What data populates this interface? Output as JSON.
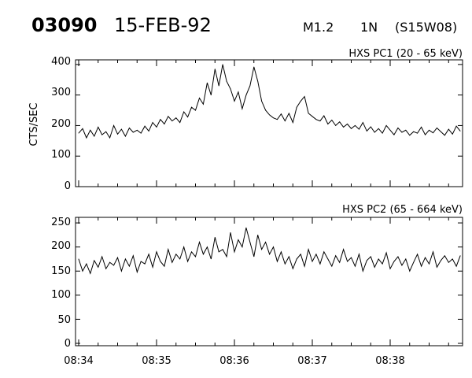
{
  "header": {
    "event_id": "03090",
    "date": "15-FEB-92",
    "goes_class": "M1.2",
    "optical_class": "1N",
    "location": "(S15W08)"
  },
  "y_axis_label": "CTS/SEC",
  "x_tick_labels": [
    "08:34",
    "08:35",
    "08:36",
    "08:37",
    "08:38"
  ],
  "chart_data": [
    {
      "type": "line",
      "title": "HXS PC1 (20 - 65 keV)",
      "ylabel": "CTS/SEC",
      "xlabel": "",
      "xlim": [
        "08:34:00",
        "08:38:55"
      ],
      "ylim": [
        0,
        410
      ],
      "yticks": [
        "0",
        "100",
        "200",
        "300",
        "400"
      ],
      "xticks": [
        "08:34",
        "08:35",
        "08:36",
        "08:37",
        "08:38"
      ],
      "x_unit": "minutes after 08:34",
      "series": [
        {
          "color": "#000000",
          "x": [
            0.0,
            0.05,
            0.1,
            0.15,
            0.2,
            0.25,
            0.3,
            0.35,
            0.4,
            0.45,
            0.5,
            0.55,
            0.6,
            0.65,
            0.7,
            0.75,
            0.8,
            0.85,
            0.9,
            0.95,
            1.0,
            1.05,
            1.1,
            1.15,
            1.2,
            1.25,
            1.3,
            1.35,
            1.4,
            1.45,
            1.5,
            1.55,
            1.6,
            1.65,
            1.7,
            1.75,
            1.8,
            1.85,
            1.9,
            1.95,
            2.0,
            2.05,
            2.1,
            2.15,
            2.2,
            2.25,
            2.3,
            2.35,
            2.4,
            2.45,
            2.5,
            2.55,
            2.6,
            2.65,
            2.7,
            2.75,
            2.8,
            2.85,
            2.9,
            2.95,
            3.0,
            3.05,
            3.1,
            3.15,
            3.2,
            3.25,
            3.3,
            3.35,
            3.4,
            3.45,
            3.5,
            3.55,
            3.6,
            3.65,
            3.7,
            3.75,
            3.8,
            3.85,
            3.9,
            3.95,
            4.0,
            4.05,
            4.1,
            4.15,
            4.2,
            4.25,
            4.3,
            4.35,
            4.4,
            4.45,
            4.5,
            4.55,
            4.6,
            4.65,
            4.7,
            4.75,
            4.8,
            4.85,
            4.9
          ],
          "values": [
            175,
            190,
            160,
            185,
            165,
            195,
            170,
            180,
            160,
            200,
            172,
            188,
            165,
            192,
            178,
            185,
            175,
            198,
            182,
            210,
            195,
            220,
            205,
            230,
            215,
            225,
            210,
            245,
            228,
            260,
            250,
            290,
            270,
            340,
            300,
            385,
            330,
            400,
            345,
            320,
            280,
            310,
            255,
            300,
            330,
            392,
            345,
            280,
            250,
            235,
            225,
            220,
            238,
            215,
            240,
            210,
            260,
            280,
            295,
            240,
            230,
            220,
            215,
            232,
            205,
            218,
            200,
            212,
            195,
            205,
            190,
            200,
            188,
            210,
            182,
            196,
            178,
            190,
            175,
            200,
            185,
            170,
            192,
            178,
            185,
            168,
            180,
            175,
            195,
            170,
            185,
            176,
            192,
            180,
            168,
            188,
            172,
            198,
            182
          ]
        }
      ]
    },
    {
      "type": "line",
      "title": "HXS PC2 (65 - 664 keV)",
      "ylabel": "",
      "xlabel": "",
      "xlim": [
        "08:34:00",
        "08:38:55"
      ],
      "ylim": [
        0,
        255
      ],
      "yticks": [
        "0",
        "50",
        "100",
        "150",
        "200",
        "250"
      ],
      "xticks": [
        "08:34",
        "08:35",
        "08:36",
        "08:37",
        "08:38"
      ],
      "x_unit": "minutes after 08:34",
      "series": [
        {
          "color": "#000000",
          "x": [
            0.0,
            0.05,
            0.1,
            0.15,
            0.2,
            0.25,
            0.3,
            0.35,
            0.4,
            0.45,
            0.5,
            0.55,
            0.6,
            0.65,
            0.7,
            0.75,
            0.8,
            0.85,
            0.9,
            0.95,
            1.0,
            1.05,
            1.1,
            1.15,
            1.2,
            1.25,
            1.3,
            1.35,
            1.4,
            1.45,
            1.5,
            1.55,
            1.6,
            1.65,
            1.7,
            1.75,
            1.8,
            1.85,
            1.9,
            1.95,
            2.0,
            2.05,
            2.1,
            2.15,
            2.2,
            2.25,
            2.3,
            2.35,
            2.4,
            2.45,
            2.5,
            2.55,
            2.6,
            2.65,
            2.7,
            2.75,
            2.8,
            2.85,
            2.9,
            2.95,
            3.0,
            3.05,
            3.1,
            3.15,
            3.2,
            3.25,
            3.3,
            3.35,
            3.4,
            3.45,
            3.5,
            3.55,
            3.6,
            3.65,
            3.7,
            3.75,
            3.8,
            3.85,
            3.9,
            3.95,
            4.0,
            4.05,
            4.1,
            4.15,
            4.2,
            4.25,
            4.3,
            4.35,
            4.4,
            4.45,
            4.5,
            4.55,
            4.6,
            4.65,
            4.7,
            4.75,
            4.8,
            4.85,
            4.9
          ],
          "values": [
            175,
            150,
            165,
            145,
            172,
            158,
            180,
            155,
            168,
            162,
            178,
            150,
            175,
            160,
            182,
            148,
            170,
            165,
            185,
            158,
            190,
            170,
            160,
            195,
            168,
            185,
            175,
            200,
            170,
            190,
            180,
            210,
            185,
            200,
            175,
            220,
            190,
            195,
            180,
            230,
            190,
            215,
            200,
            240,
            210,
            180,
            225,
            195,
            210,
            185,
            200,
            170,
            190,
            165,
            180,
            155,
            175,
            185,
            160,
            195,
            170,
            185,
            165,
            190,
            175,
            160,
            182,
            168,
            195,
            170,
            178,
            160,
            185,
            150,
            172,
            180,
            158,
            175,
            165,
            188,
            155,
            170,
            180,
            162,
            175,
            150,
            168,
            185,
            160,
            178,
            165,
            190,
            158,
            172,
            182,
            168,
            175,
            160,
            182
          ]
        }
      ]
    }
  ]
}
